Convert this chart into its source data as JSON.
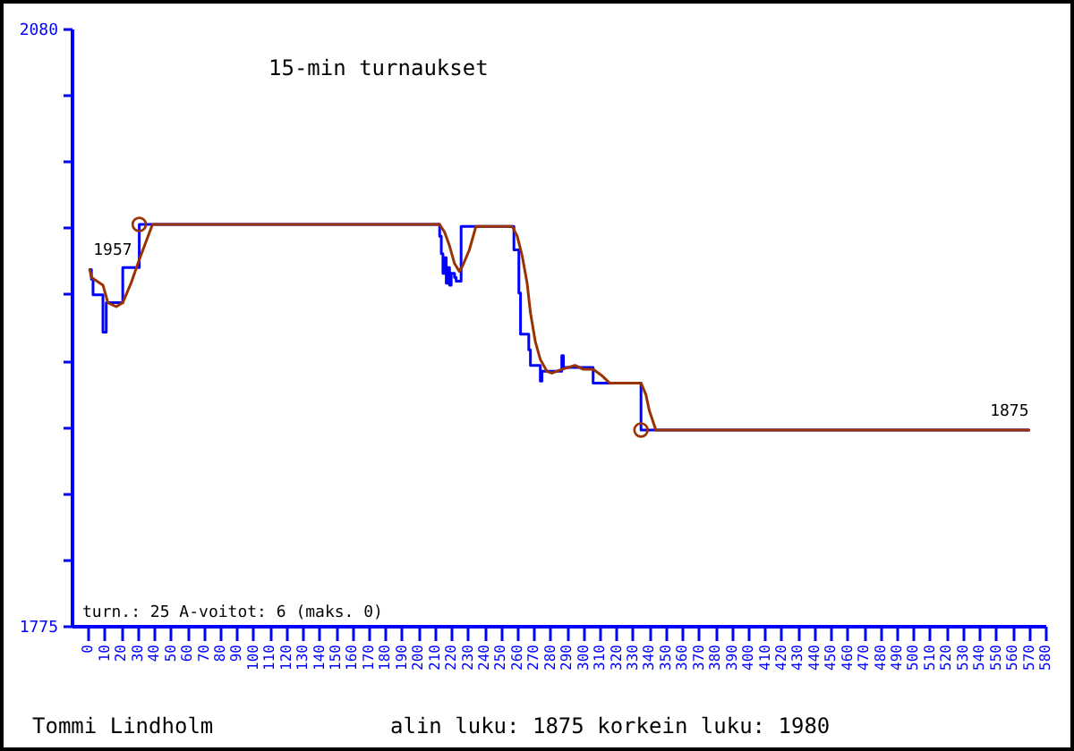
{
  "chart_data": {
    "type": "line",
    "title": "15-min turnaukset",
    "xlim": [
      -10,
      580
    ],
    "xticks": [
      0,
      10,
      20,
      30,
      40,
      50,
      60,
      70,
      80,
      90,
      100,
      110,
      120,
      130,
      140,
      150,
      160,
      170,
      180,
      190,
      200,
      210,
      220,
      230,
      240,
      250,
      260,
      270,
      280,
      290,
      300,
      310,
      320,
      330,
      340,
      350,
      360,
      370,
      380,
      390,
      400,
      410,
      420,
      430,
      440,
      450,
      460,
      470,
      480,
      490,
      500,
      510,
      520,
      530,
      540,
      550,
      560,
      570,
      580
    ],
    "ylim": [
      1775,
      2080
    ],
    "yticks": [
      1775,
      {
        "value": 1808.9,
        "label": null
      },
      {
        "value": 1842.8,
        "label": null
      },
      {
        "value": 1876.7,
        "label": null
      },
      {
        "value": 1910.6,
        "label": null
      },
      {
        "value": 1944.4,
        "label": null
      },
      {
        "value": 1978.3,
        "label": null
      },
      {
        "value": 2012.2,
        "label": null
      },
      {
        "value": 2046.1,
        "label": null
      },
      2080
    ],
    "series": [
      {
        "type": "step",
        "color": "#0000ff",
        "x": [
          1,
          2,
          3,
          9,
          11,
          21,
          31,
          213,
          214,
          215,
          216,
          217,
          218,
          219,
          220,
          222,
          223,
          226,
          258,
          261,
          262,
          267,
          268,
          274,
          275,
          287,
          288,
          306,
          335,
          570
        ],
        "values": [
          1957,
          1952,
          1944,
          1925,
          1940,
          1958,
          1980,
          1974,
          1965,
          1955,
          1963,
          1950,
          1958,
          1949,
          1955,
          1953,
          1951,
          1979,
          1967,
          1945,
          1924,
          1916,
          1908,
          1900,
          1905,
          1913,
          1907,
          1899,
          1875,
          1875
        ]
      },
      {
        "color": "#993300",
        "x": [
          1,
          2,
          9,
          12,
          17,
          21,
          26,
          31,
          39,
          213,
          216,
          219,
          222,
          225,
          227,
          231,
          235,
          257,
          260,
          263,
          266,
          268,
          271,
          274,
          278,
          281,
          287,
          295,
          300,
          306,
          311,
          316,
          335,
          338,
          340,
          344,
          570
        ],
        "values": [
          1957,
          1953,
          1949,
          1940,
          1938,
          1940,
          1950,
          1962,
          1980,
          1980,
          1976,
          1969,
          1960,
          1956,
          1959,
          1967,
          1979,
          1979,
          1974,
          1964,
          1950,
          1935,
          1920,
          1911,
          1905,
          1904,
          1906,
          1908,
          1906,
          1906,
          1903,
          1899,
          1899,
          1893,
          1885,
          1875,
          1875
        ]
      },
      {
        "type": "scatter",
        "marker": "circle",
        "color": "#993300",
        "x": [
          31,
          335
        ],
        "values": [
          1980,
          1875
        ]
      }
    ],
    "annotations": [
      "turn.: 25 A-voitot: 6 (maks. 0)",
      {
        "text": "1957",
        "x": 1,
        "y": 1957
      },
      {
        "text": "1875",
        "x": 570,
        "y": 1875
      },
      "Tommi Lindholm",
      "alin luku: 1875 korkein luku: 1980"
    ]
  }
}
